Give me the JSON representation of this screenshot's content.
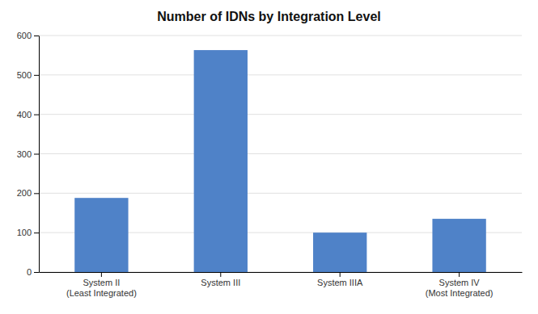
{
  "chart_data": {
    "type": "bar",
    "title": "Number of IDNs by Integration Level",
    "categories": [
      "System II\n(Least Integrated)",
      "System III",
      "System IIIA",
      "System IV\n(Most Integrated)"
    ],
    "values": [
      188,
      563,
      100,
      135
    ],
    "color": "#4F82C8",
    "ylim": [
      0,
      600
    ],
    "yticks": [
      0,
      100,
      200,
      300,
      400,
      500,
      600
    ],
    "grid": true
  }
}
